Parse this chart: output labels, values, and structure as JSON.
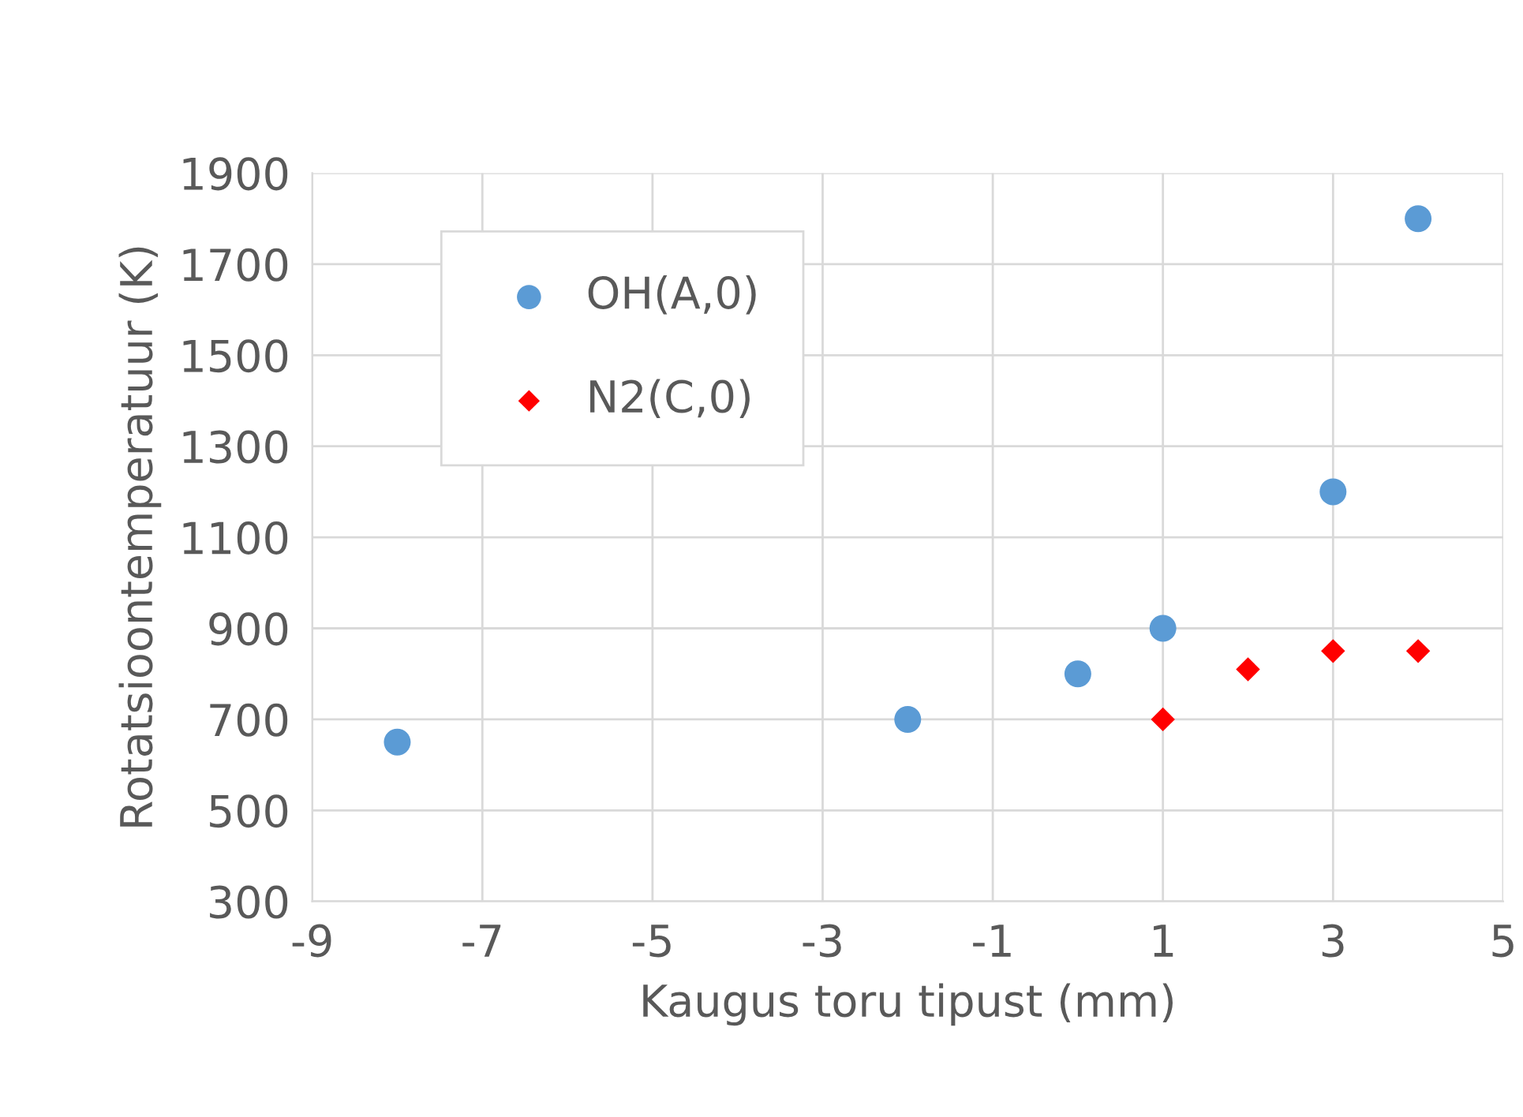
{
  "chart_data": {
    "type": "scatter",
    "xlabel": "Kaugus toru tipust (mm)",
    "ylabel": "Rotatsioontemperatuur (K)",
    "series": [
      {
        "name": "OH(A,0)",
        "color": "#5b9bd5",
        "marker": "circle",
        "x": [
          -8,
          -2,
          0,
          1,
          3,
          4
        ],
        "values": [
          650,
          700,
          800,
          900,
          1200,
          1800
        ]
      },
      {
        "name": "N2(C,0)",
        "color": "#ff0000",
        "marker": "diamond",
        "x": [
          1,
          2,
          3,
          4
        ],
        "values": [
          700,
          810,
          850,
          850
        ]
      }
    ],
    "xlim": [
      -9,
      5
    ],
    "xticks": [
      -9,
      -7,
      -5,
      -3,
      -1,
      1,
      3,
      5
    ],
    "ylim": [
      300,
      1900
    ],
    "yticks": [
      300,
      500,
      700,
      900,
      1100,
      1300,
      1500,
      1700,
      1900
    ],
    "grid": true,
    "legend": "top left"
  }
}
